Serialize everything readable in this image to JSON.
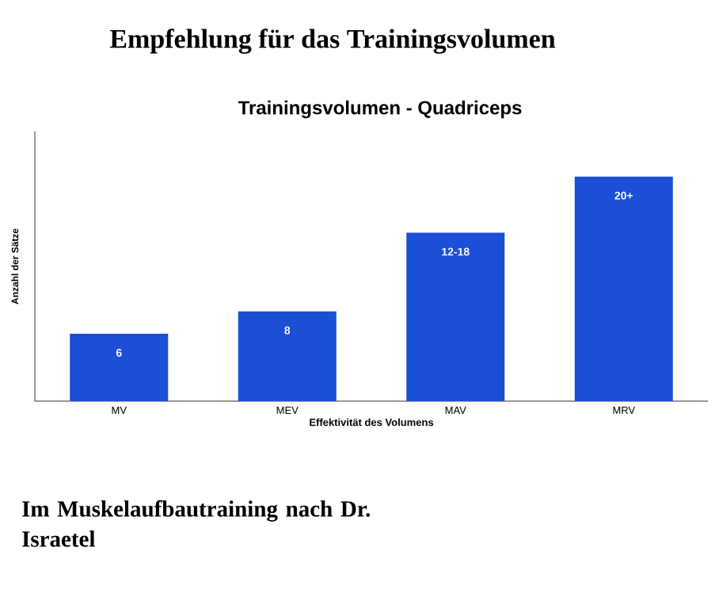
{
  "chart_data": {
    "type": "bar",
    "title": "Empfehlung für das Trainingsvolumen",
    "subtitle": "Trainingsvolumen - Quadriceps",
    "xlabel": "Effektivität des Volumens",
    "ylabel": "Anzahl der Sätze",
    "categories": [
      "MV",
      "MEV",
      "MAV",
      "MRV"
    ],
    "values": [
      6,
      8,
      15,
      20
    ],
    "value_labels": [
      "6",
      "8",
      "12-18",
      "20+"
    ],
    "color": "#1a4fd6",
    "annotations": [
      "Im Muskelaufbautraining nach Dr. Israetel"
    ]
  }
}
